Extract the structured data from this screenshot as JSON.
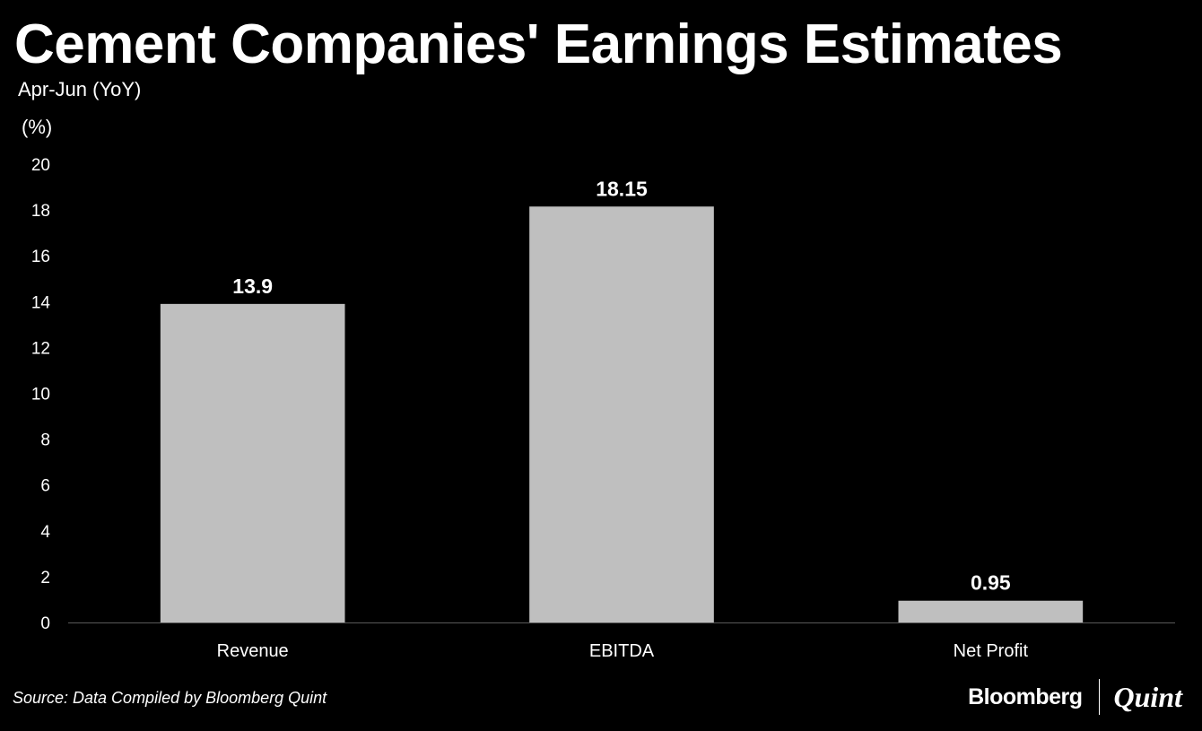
{
  "header": {
    "title": "Cement Companies' Earnings Estimates",
    "subtitle": "Apr-Jun (YoY)",
    "unit": "(%)"
  },
  "footer": {
    "source": "Source: Data Compiled by Bloomberg Quint",
    "brand_primary": "Bloomberg",
    "brand_secondary": "Quint"
  },
  "colors": {
    "background": "#000000",
    "bar": "#bfbfbf",
    "text": "#ffffff",
    "axis": "#595959"
  },
  "chart_data": {
    "type": "bar",
    "title": "Cement Companies' Earnings Estimates",
    "subtitle": "Apr-Jun (YoY)",
    "ylabel": "(%)",
    "categories": [
      "Revenue",
      "EBITDA",
      "Net Profit"
    ],
    "values": [
      13.9,
      18.15,
      0.95
    ],
    "value_labels": [
      "13.9",
      "18.15",
      "0.95"
    ],
    "ylim": [
      0,
      20
    ],
    "yticks": [
      0,
      2,
      4,
      6,
      8,
      10,
      12,
      14,
      16,
      18,
      20
    ],
    "grid": false,
    "legend": "none"
  }
}
